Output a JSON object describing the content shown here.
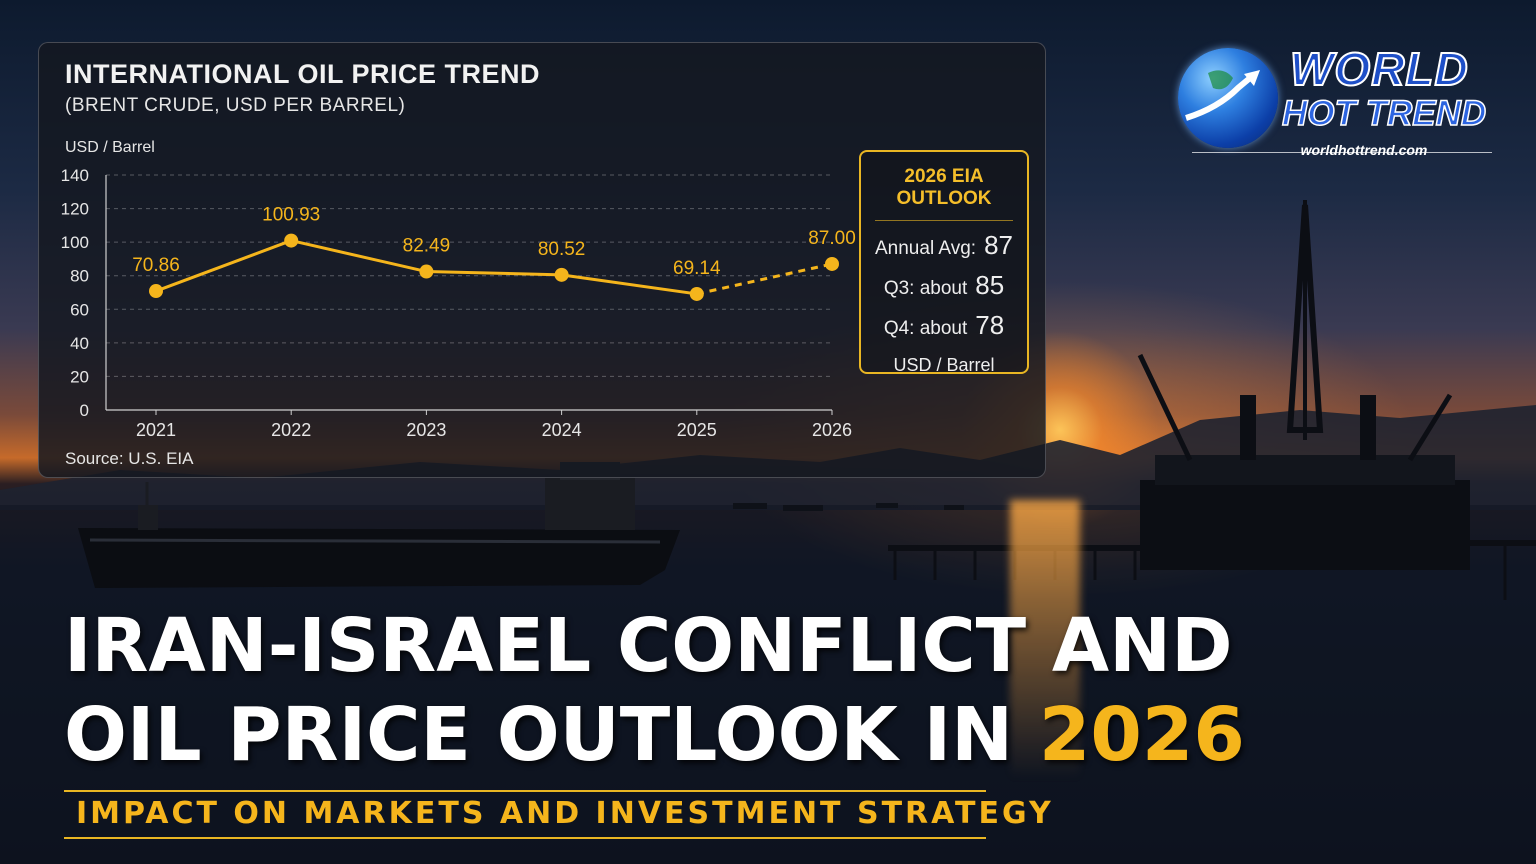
{
  "colors": {
    "accent": "#f5b51c",
    "line": "#f5b51c",
    "panel_bg": "#141820"
  },
  "chart_data": {
    "type": "line",
    "title": "INTERNATIONAL OIL PRICE TREND",
    "subtitle": "(BRENT CRUDE, USD PER BARREL)",
    "ylabel": "USD / Barrel",
    "xlabel": "",
    "categories": [
      "2021",
      "2022",
      "2023",
      "2024",
      "2025",
      "2026"
    ],
    "values": [
      70.86,
      100.93,
      82.49,
      80.52,
      69.14,
      87.0
    ],
    "data_labels": [
      "70.86",
      "100.93",
      "82.49",
      "80.52",
      "69.14",
      "87.00"
    ],
    "forecast_from_index": 4,
    "ylim": [
      0,
      140
    ],
    "yticks": [
      0,
      20,
      40,
      60,
      80,
      100,
      120,
      140
    ],
    "grid": true,
    "source": "Source: U.S. EIA"
  },
  "outlook": {
    "title": "2026 EIA OUTLOOK",
    "rows": [
      {
        "label": "Annual Avg:",
        "value": "87"
      },
      {
        "label": "Q3:  about",
        "value": "85"
      },
      {
        "label": "Q4:  about",
        "value": "78"
      }
    ],
    "unit": "USD / Barrel"
  },
  "logo": {
    "line1": "WORLD",
    "line2": "HOT TREND",
    "url": "worldhottrend.com"
  },
  "headline": {
    "line1": "IRAN-ISRAEL CONFLICT AND",
    "line2_prefix": "OIL PRICE OUTLOOK IN ",
    "line2_year": "2026"
  },
  "subtitle": "IMPACT ON MARKETS AND INVESTMENT STRATEGY"
}
